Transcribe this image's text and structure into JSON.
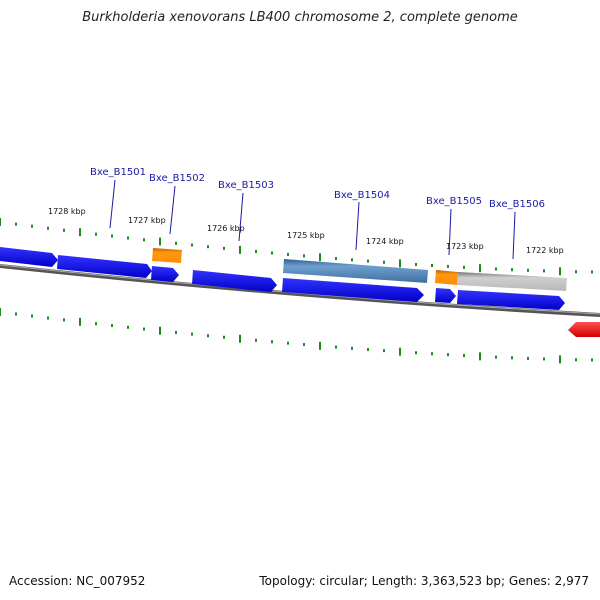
{
  "title": "Burkholderia xenovorans LB400 chromosome 2, complete genome",
  "scale_labels": [
    "1728 kbp",
    "1727 kbp",
    "1726 kbp",
    "1725 kbp",
    "1724 kbp",
    "1723 kbp",
    "1722 kbp"
  ],
  "gene_labels": [
    "Bxe_B1501",
    "Bxe_B1502",
    "Bxe_B1503",
    "Bxe_B1504",
    "Bxe_B1505",
    "Bxe_B1506"
  ],
  "colors": {
    "cds": "#0000ee",
    "rna": "#ff8c00",
    "feature_steel": "#4a7ba8",
    "feature_grey": "#bbbbbb",
    "other_strand": "#ff0000",
    "ticks": "#1e8a1e",
    "backbone": "#777777",
    "label": "#1a1aa6"
  },
  "footer": {
    "accession": "Accession: NC_007952",
    "stats": "Topology: circular; Length: 3,363,523 bp; Genes: 2,977"
  }
}
